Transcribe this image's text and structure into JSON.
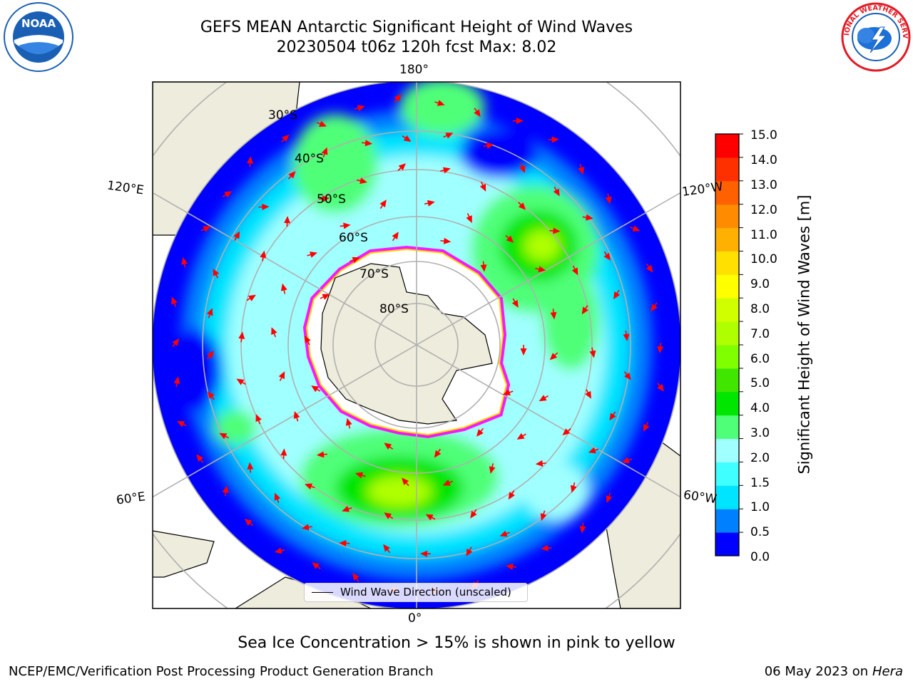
{
  "header": {
    "title_line1": "GEFS MEAN Antarctic Significant Height of Wind Waves",
    "title_line2": "20230504 t06z 120h fcst   Max: 8.02"
  },
  "logos": {
    "left": {
      "name": "noaa-logo",
      "text": "NOAA",
      "ring_text": "NATIONAL OCEANIC AND ATMOSPHERIC ADMINISTRATION · U.S. DEPARTMENT OF COMMERCE",
      "color": "#1a5fb4"
    },
    "right": {
      "name": "nws-logo",
      "ring_text": "NATIONAL WEATHER SERVICE",
      "color": "#e01b24"
    }
  },
  "map": {
    "projection": "south-polar-stereographic",
    "longitude_labels": {
      "top": "180°",
      "upper_left": "120°E",
      "upper_right": "120°W",
      "lower_left": "60°E",
      "lower_right": "60°W",
      "bottom": "0°"
    },
    "latitude_labels": [
      "30°S",
      "40°S",
      "50°S",
      "60°S",
      "70°S",
      "80°S"
    ],
    "legend_text": "Wind Wave Direction (unscaled)",
    "arrow_color": "#ff0000",
    "land_color": "#eeecdc",
    "ice_color": "#ff00ff"
  },
  "colorbar": {
    "label": "Significant Height of Wind Waves [m]",
    "ticks": [
      "15.0",
      "14.0",
      "13.0",
      "12.0",
      "11.0",
      "10.0",
      "9.0",
      "8.0",
      "7.0",
      "6.0",
      "5.0",
      "4.0",
      "3.0",
      "2.0",
      "1.5",
      "1.0",
      "0.5",
      "0.0"
    ],
    "colors_bottom_to_top": [
      "#0000ff",
      "#0080ff",
      "#00e5ff",
      "#40ffff",
      "#a0ffff",
      "#50ff78",
      "#00e600",
      "#40e600",
      "#80ff00",
      "#b0ff00",
      "#d0ff00",
      "#ffff00",
      "#ffe000",
      "#ffb000",
      "#ff8c00",
      "#ff6000",
      "#ff3000",
      "#ff0000"
    ]
  },
  "footer": {
    "note": "Sea Ice Concentration > 15% is shown in pink to yellow",
    "credit": "NCEP/EMC/Verification Post Processing Product Generation Branch",
    "date": "06 May 2023 on",
    "host": "Hera"
  }
}
